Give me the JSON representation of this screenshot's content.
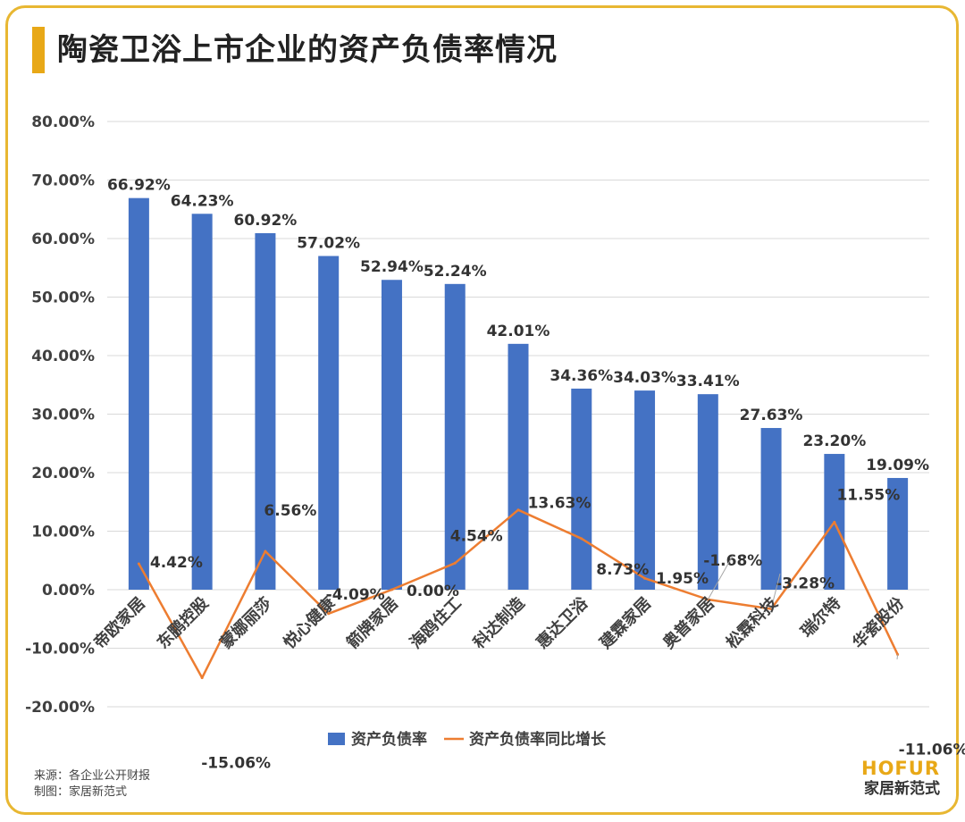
{
  "title": "陶瓷卫浴上市企业的资产负债率情况",
  "footer": {
    "source": "来源：各企业公开财报",
    "maker": "制图：家居新范式"
  },
  "brand": {
    "en": "HOFUR",
    "cn": "家居新范式"
  },
  "colors": {
    "bar": "#4472c4",
    "line": "#ed7d31",
    "accent": "#e8a817",
    "frame": "#e8b732"
  },
  "chart_data": {
    "type": "bar",
    "categories": [
      "帝欧家居",
      "东鹏控股",
      "蒙娜丽莎",
      "悦心健康",
      "箭牌家居",
      "海鸥住工",
      "科达制造",
      "惠达卫浴",
      "建霖家居",
      "奥普家居",
      "松霖科技",
      "瑞尔特",
      "华瓷股份"
    ],
    "series": [
      {
        "name": "资产负债率",
        "type": "bar",
        "values": [
          66.92,
          64.23,
          60.92,
          57.02,
          52.94,
          52.24,
          42.01,
          34.36,
          34.03,
          33.41,
          27.63,
          23.2,
          19.09
        ],
        "labels": [
          "66.92%",
          "64.23%",
          "60.92%",
          "57.02%",
          "52.94%",
          "52.24%",
          "42.01%",
          "34.36%",
          "34.03%",
          "33.41%",
          "27.63%",
          "23.20%",
          "19.09%"
        ]
      },
      {
        "name": "资产负债率同比增长",
        "type": "line",
        "values": [
          4.42,
          -15.06,
          6.56,
          -4.09,
          0.0,
          4.54,
          13.63,
          8.73,
          1.95,
          -1.68,
          -3.28,
          11.55,
          -11.06
        ],
        "labels": [
          "4.42%",
          "-15.06%",
          "6.56%",
          "-4.09%",
          "0.00%",
          "4.54%",
          "13.63%",
          "8.73%",
          "1.95%",
          "-1.68%",
          "-3.28%",
          "11.55%",
          "-11.06%"
        ]
      }
    ],
    "ylim": [
      -20,
      80
    ],
    "yticks": [
      -20,
      -10,
      0,
      10,
      20,
      30,
      40,
      50,
      60,
      70,
      80
    ],
    "ytick_labels": [
      "-20.00%",
      "-10.00%",
      "0.00%",
      "10.00%",
      "20.00%",
      "30.00%",
      "40.00%",
      "50.00%",
      "60.00%",
      "70.00%",
      "80.00%"
    ],
    "grid": true,
    "legend": "bottom"
  }
}
